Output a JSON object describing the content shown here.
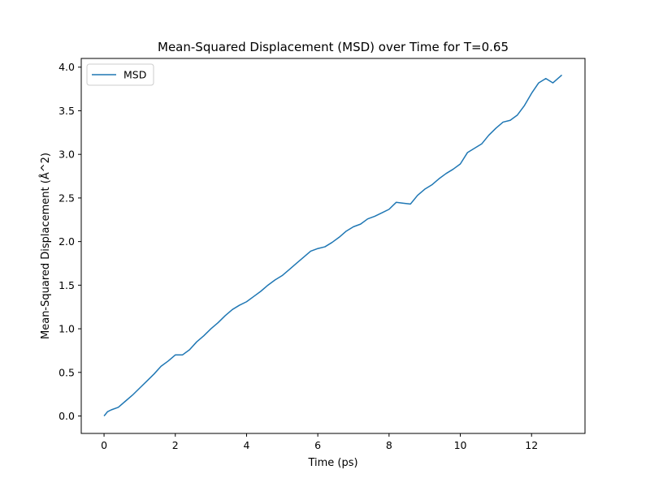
{
  "chart_data": {
    "type": "line",
    "title": "Mean-Squared Displacement (MSD) over Time for T=0.65",
    "xlabel": "Time (ps)",
    "ylabel": "Mean-Squared Displacement (Å^2)",
    "xlim": [
      -0.64,
      13.5
    ],
    "ylim": [
      -0.2,
      4.1
    ],
    "xticks": [
      0,
      2,
      4,
      6,
      8,
      10,
      12
    ],
    "yticks": [
      0.0,
      0.5,
      1.0,
      1.5,
      2.0,
      2.5,
      3.0,
      3.5,
      4.0
    ],
    "xtick_labels": [
      "0",
      "2",
      "4",
      "6",
      "8",
      "10",
      "12"
    ],
    "ytick_labels": [
      "0.0",
      "0.5",
      "1.0",
      "1.5",
      "2.0",
      "2.5",
      "3.0",
      "3.5",
      "4.0"
    ],
    "grid": false,
    "legend": {
      "position": "top-left",
      "entries": [
        "MSD"
      ]
    },
    "colors": {
      "line": "#1f77b4"
    },
    "series": [
      {
        "name": "MSD",
        "x": [
          0.0,
          0.1,
          0.2,
          0.4,
          0.6,
          0.8,
          1.0,
          1.2,
          1.4,
          1.6,
          1.8,
          2.0,
          2.2,
          2.4,
          2.6,
          2.8,
          3.0,
          3.2,
          3.4,
          3.6,
          3.8,
          4.0,
          4.2,
          4.4,
          4.6,
          4.8,
          5.0,
          5.2,
          5.4,
          5.6,
          5.8,
          6.0,
          6.2,
          6.4,
          6.6,
          6.8,
          7.0,
          7.2,
          7.4,
          7.6,
          7.8,
          8.0,
          8.2,
          8.4,
          8.6,
          8.8,
          9.0,
          9.2,
          9.4,
          9.6,
          9.8,
          10.0,
          10.2,
          10.4,
          10.6,
          10.8,
          11.0,
          11.2,
          11.4,
          11.6,
          11.8,
          12.0,
          12.2,
          12.4,
          12.6,
          12.85
        ],
        "y": [
          0.0,
          0.05,
          0.07,
          0.1,
          0.17,
          0.24,
          0.32,
          0.4,
          0.48,
          0.57,
          0.63,
          0.7,
          0.7,
          0.76,
          0.85,
          0.92,
          1.0,
          1.07,
          1.15,
          1.22,
          1.27,
          1.31,
          1.37,
          1.43,
          1.5,
          1.56,
          1.61,
          1.68,
          1.75,
          1.82,
          1.89,
          1.92,
          1.94,
          1.99,
          2.05,
          2.12,
          2.17,
          2.2,
          2.26,
          2.29,
          2.33,
          2.37,
          2.45,
          2.44,
          2.43,
          2.53,
          2.6,
          2.65,
          2.72,
          2.78,
          2.83,
          2.89,
          3.02,
          3.07,
          3.12,
          3.22,
          3.3,
          3.37,
          3.39,
          3.45,
          3.56,
          3.7,
          3.82,
          3.87,
          3.82,
          3.91
        ]
      }
    ]
  }
}
